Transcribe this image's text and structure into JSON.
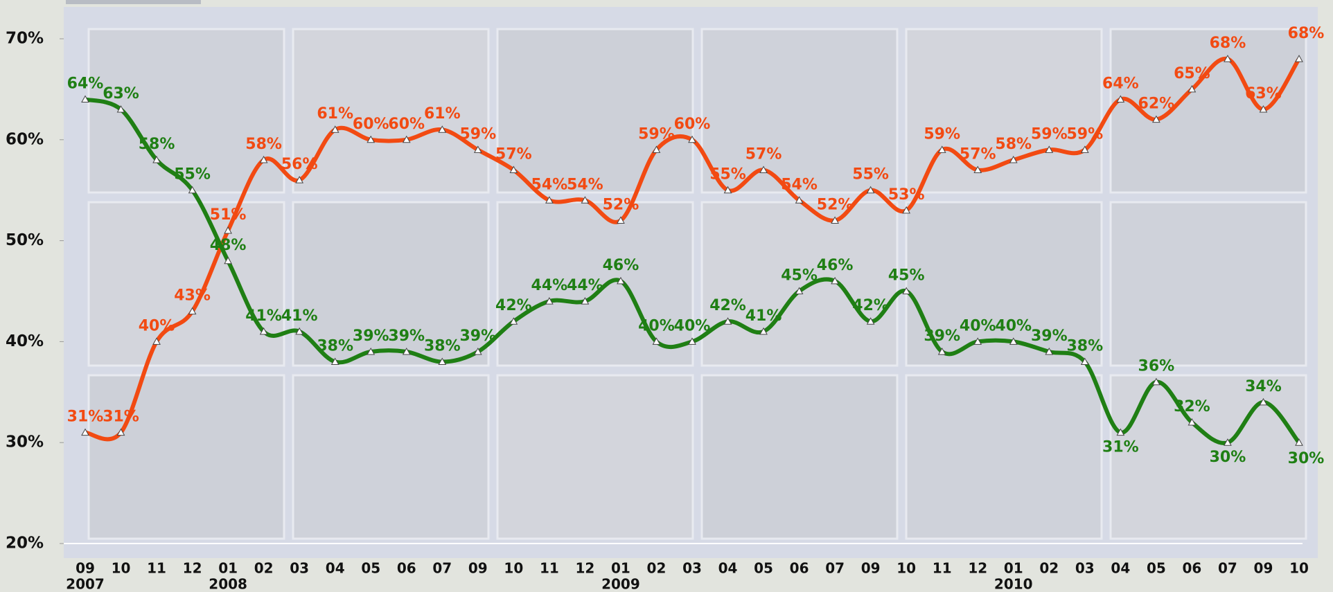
{
  "chart_data": {
    "type": "line",
    "categories": [
      "09",
      "10",
      "11",
      "12",
      "01",
      "02",
      "03",
      "04",
      "05",
      "06",
      "07",
      "09",
      "10",
      "11",
      "12",
      "01",
      "02",
      "03",
      "04",
      "05",
      "06",
      "07",
      "09",
      "10",
      "11",
      "12",
      "01",
      "02",
      "03",
      "04",
      "05",
      "06",
      "07",
      "09",
      "10"
    ],
    "years": [
      "2007",
      null,
      null,
      null,
      "2008",
      null,
      null,
      null,
      null,
      null,
      null,
      null,
      null,
      null,
      null,
      "2009",
      null,
      null,
      null,
      null,
      null,
      null,
      null,
      null,
      null,
      null,
      "2010",
      null,
      null,
      null,
      null,
      null,
      null,
      null,
      null
    ],
    "series": [
      {
        "color": "#f24a12",
        "values": [
          31,
          31,
          40,
          43,
          51,
          58,
          56,
          61,
          60,
          60,
          61,
          59,
          57,
          54,
          54,
          52,
          59,
          60,
          55,
          57,
          54,
          52,
          55,
          53,
          59,
          57,
          58,
          59,
          59,
          64,
          62,
          65,
          68,
          63,
          68
        ],
        "value_labels": [
          "31%",
          "31%",
          "40%",
          "43%",
          "51%",
          "58%",
          "56%",
          "61%",
          "60%",
          "60%",
          "61%",
          "59%",
          "57%",
          "54%",
          "54%",
          "52%",
          "59%",
          "60%",
          "55%",
          "57%",
          "54%",
          "52%",
          "55%",
          "53%",
          "59%",
          "57%",
          "58%",
          "59%",
          "59%",
          "64%",
          "62%",
          "65%",
          "68%",
          "63%",
          "68%"
        ]
      },
      {
        "color": "#1f7f14",
        "values": [
          64,
          63,
          58,
          55,
          48,
          41,
          41,
          38,
          39,
          39,
          38,
          39,
          42,
          44,
          44,
          46,
          40,
          40,
          42,
          41,
          45,
          46,
          42,
          45,
          39,
          40,
          40,
          39,
          38,
          31,
          36,
          32,
          30,
          34,
          30
        ],
        "value_labels": [
          "64%",
          "63%",
          "58%",
          "55%",
          "48%",
          "41%",
          "41%",
          "38%",
          "39%",
          "39%",
          "38%",
          "39%",
          "42%",
          "44%",
          "44%",
          "46%",
          "40%",
          "40%",
          "42%",
          "41%",
          "45%",
          "46%",
          "42%",
          "45%",
          "39%",
          "40%",
          "40%",
          "39%",
          "38%",
          "31%",
          "36%",
          "32%",
          "30%",
          "34%",
          "30%"
        ]
      }
    ],
    "ylim": [
      20,
      70
    ],
    "yticks": [
      {
        "value": 20,
        "label": "20%"
      },
      {
        "value": 30,
        "label": "30%"
      },
      {
        "value": 40,
        "label": "40%"
      },
      {
        "value": 50,
        "label": "50%"
      },
      {
        "value": 60,
        "label": "60%"
      },
      {
        "value": 70,
        "label": "70%"
      }
    ],
    "grid": false
  }
}
